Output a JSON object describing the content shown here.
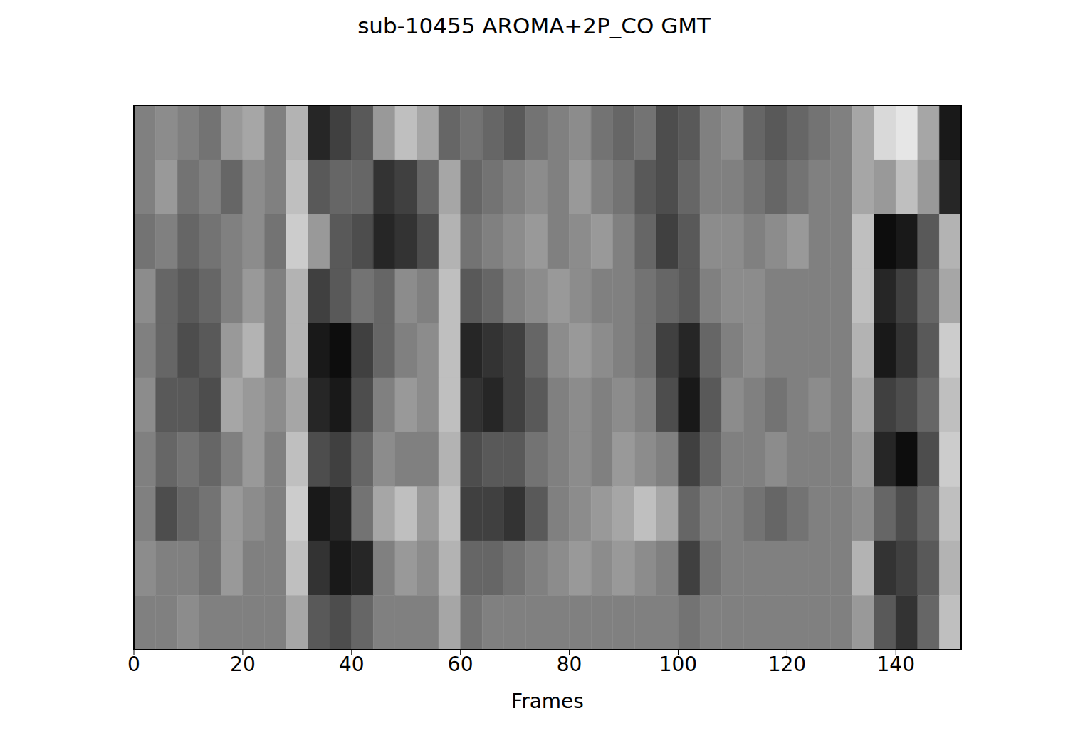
{
  "chart_data": {
    "type": "heatmap",
    "title": "sub-10455 AROMA+2P_CO GMT",
    "x_label": "Frames",
    "xlim": [
      0,
      152
    ],
    "xticks": [
      0,
      20,
      40,
      60,
      80,
      100,
      120,
      140
    ],
    "ylim": [
      0,
      10
    ],
    "yticks": [
      0,
      2,
      4,
      6,
      8,
      10
    ],
    "tick_labels": "x",
    "color": "gray",
    "zlim": [
      -1,
      1
    ],
    "x": [
      0,
      4,
      8,
      12,
      16,
      20,
      24,
      28,
      32,
      36,
      40,
      44,
      48,
      52,
      56,
      60,
      64,
      68,
      72,
      76,
      80,
      84,
      88,
      92,
      96,
      100,
      104,
      108,
      112,
      116,
      120,
      124,
      128,
      132,
      136,
      140,
      144,
      148
    ],
    "y": [
      9,
      8,
      7,
      6,
      5,
      4,
      3,
      2,
      1,
      0
    ],
    "cells": [
      [
        0,
        0.1,
        0,
        -0.1,
        0.2,
        0.3,
        0,
        0.4,
        -0.7,
        -0.5,
        -0.3,
        0.2,
        0.5,
        0.3,
        -0.2,
        -0.1,
        -0.2,
        -0.3,
        -0.1,
        0,
        0.1,
        -0.1,
        -0.2,
        -0.1,
        -0.4,
        -0.3,
        0,
        0.1,
        -0.2,
        -0.3,
        -0.2,
        -0.1,
        0,
        0.3,
        0.7,
        0.8,
        0.3,
        -0.8
      ],
      [
        0,
        0.2,
        -0.1,
        0,
        -0.2,
        0.1,
        0,
        0.5,
        -0.3,
        -0.2,
        -0.2,
        -0.6,
        -0.5,
        -0.2,
        0.3,
        -0.2,
        -0.1,
        0,
        0.1,
        0,
        0.2,
        0,
        -0.1,
        -0.3,
        -0.4,
        -0.2,
        0,
        0,
        -0.1,
        -0.2,
        -0.1,
        0,
        0,
        0.3,
        0.2,
        0.5,
        0.2,
        -0.7
      ],
      [
        -0.1,
        0,
        -0.2,
        -0.1,
        0,
        0.1,
        -0.1,
        0.6,
        0.2,
        -0.3,
        -0.4,
        -0.7,
        -0.6,
        -0.4,
        0.4,
        -0.1,
        0,
        0.1,
        0.2,
        0,
        0.1,
        0.2,
        0,
        -0.2,
        -0.5,
        -0.3,
        0.1,
        0.1,
        0,
        0.1,
        0.2,
        0,
        0,
        0.5,
        -0.9,
        -0.8,
        -0.3,
        0.4
      ],
      [
        0.1,
        -0.2,
        -0.3,
        -0.2,
        0,
        0.2,
        0,
        0.4,
        -0.5,
        -0.3,
        -0.1,
        -0.2,
        0.1,
        0,
        0.5,
        -0.3,
        -0.2,
        0,
        0.1,
        0.2,
        0.1,
        0,
        0,
        -0.1,
        -0.2,
        -0.3,
        0,
        0.1,
        0.1,
        0,
        0,
        0,
        0,
        0.5,
        -0.7,
        -0.5,
        -0.2,
        0.3
      ],
      [
        0,
        -0.2,
        -0.4,
        -0.3,
        0.2,
        0.4,
        0,
        0.4,
        -0.8,
        -0.9,
        -0.5,
        -0.2,
        0,
        0.1,
        0.5,
        -0.7,
        -0.6,
        -0.5,
        -0.2,
        0.1,
        0.2,
        0.1,
        0,
        -0.1,
        -0.5,
        -0.7,
        -0.2,
        0,
        0.1,
        0,
        0,
        0,
        0,
        0.4,
        -0.8,
        -0.6,
        -0.3,
        0.6
      ],
      [
        0.1,
        -0.3,
        -0.3,
        -0.4,
        0.3,
        0.2,
        0.1,
        0.3,
        -0.7,
        -0.8,
        -0.4,
        0,
        0.2,
        0.1,
        0.5,
        -0.6,
        -0.7,
        -0.5,
        -0.3,
        0,
        0.1,
        0,
        0.1,
        0,
        -0.4,
        -0.8,
        -0.3,
        0.1,
        0,
        -0.1,
        0,
        0.1,
        0,
        0.3,
        -0.5,
        -0.4,
        -0.2,
        0.5
      ],
      [
        0,
        -0.2,
        -0.1,
        -0.2,
        0,
        0.2,
        0,
        0.5,
        -0.4,
        -0.5,
        -0.2,
        0.1,
        0,
        0,
        0.4,
        -0.4,
        -0.3,
        -0.3,
        -0.1,
        0,
        0.1,
        0,
        0.2,
        0.1,
        0,
        -0.5,
        -0.2,
        0,
        0,
        0.1,
        0,
        0,
        0,
        0.2,
        -0.7,
        -0.9,
        -0.4,
        0.6
      ],
      [
        0,
        -0.4,
        -0.2,
        -0.1,
        0.2,
        0.1,
        0,
        0.6,
        -0.8,
        -0.7,
        -0.1,
        0.3,
        0.5,
        0.2,
        0.5,
        -0.5,
        -0.5,
        -0.6,
        -0.3,
        0,
        0.1,
        0.2,
        0.3,
        0.5,
        0.3,
        -0.2,
        0,
        0,
        -0.1,
        -0.2,
        -0.1,
        0,
        0,
        0.1,
        -0.2,
        -0.4,
        -0.2,
        0.5
      ],
      [
        0.1,
        0,
        0,
        -0.1,
        0.2,
        0,
        0,
        0.5,
        -0.6,
        -0.8,
        -0.7,
        0,
        0.2,
        0.1,
        0.4,
        -0.2,
        -0.2,
        -0.1,
        0,
        0.1,
        0.2,
        0.1,
        0.2,
        0.1,
        0,
        -0.5,
        -0.1,
        0,
        0,
        0,
        0,
        0,
        0,
        0.4,
        -0.6,
        -0.5,
        -0.3,
        0.4
      ],
      [
        0,
        0,
        0.1,
        0,
        0,
        0,
        0,
        0.3,
        -0.3,
        -0.4,
        -0.2,
        0,
        0,
        0,
        0.3,
        -0.1,
        0,
        0,
        0,
        0,
        0,
        0,
        0,
        0,
        0,
        -0.1,
        0,
        0,
        0,
        0,
        0,
        0,
        0,
        0.2,
        -0.3,
        -0.6,
        -0.2,
        0.5
      ]
    ]
  }
}
